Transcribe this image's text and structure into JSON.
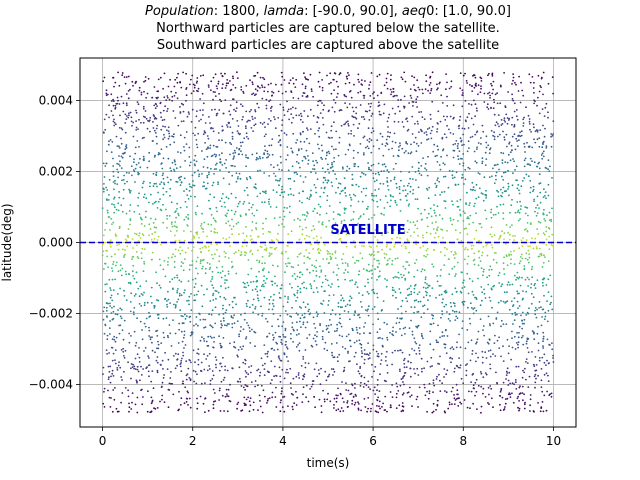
{
  "chart_data": {
    "type": "scatter",
    "title_line1_parts": [
      {
        "text": "Population",
        "italic": true
      },
      {
        "text": ": 1800, ",
        "italic": false
      },
      {
        "text": "lamda",
        "italic": true
      },
      {
        "text": ": [-90.0, 90.0], ",
        "italic": false
      },
      {
        "text": "aeq",
        "italic": true
      },
      {
        "text": "0: [1.0, 90.0]",
        "italic": false
      }
    ],
    "title_line2": "Northward particles are captured below the satellite.",
    "title_line3": "Southward particles are captured above the satellite",
    "xlabel": "time(s)",
    "ylabel": "latitude(deg)",
    "xlim": [
      -0.5,
      10.5
    ],
    "ylim": [
      -0.0052,
      0.0052
    ],
    "xticks": [
      0,
      2,
      4,
      6,
      8,
      10
    ],
    "xtick_labels": [
      "0",
      "2",
      "4",
      "6",
      "8",
      "10"
    ],
    "yticks": [
      -0.004,
      -0.002,
      0.0,
      0.002,
      0.004
    ],
    "ytick_labels": [
      "−0.004",
      "−0.002",
      "0.000",
      "0.002",
      "0.004"
    ],
    "grid": true,
    "colormap": "viridis",
    "color_by": "abs(latitude)",
    "point_distribution": {
      "x_range": [
        0,
        10
      ],
      "y_range": [
        -0.0048,
        0.0048
      ],
      "center_y": 0.0
    },
    "satellite_line": {
      "y": 0.0,
      "color": "#0000cc",
      "style": "dashed"
    },
    "annotation": {
      "text": "SATELLITE",
      "x": 5.0,
      "y": 0.0003,
      "color": "#0000cc"
    }
  }
}
